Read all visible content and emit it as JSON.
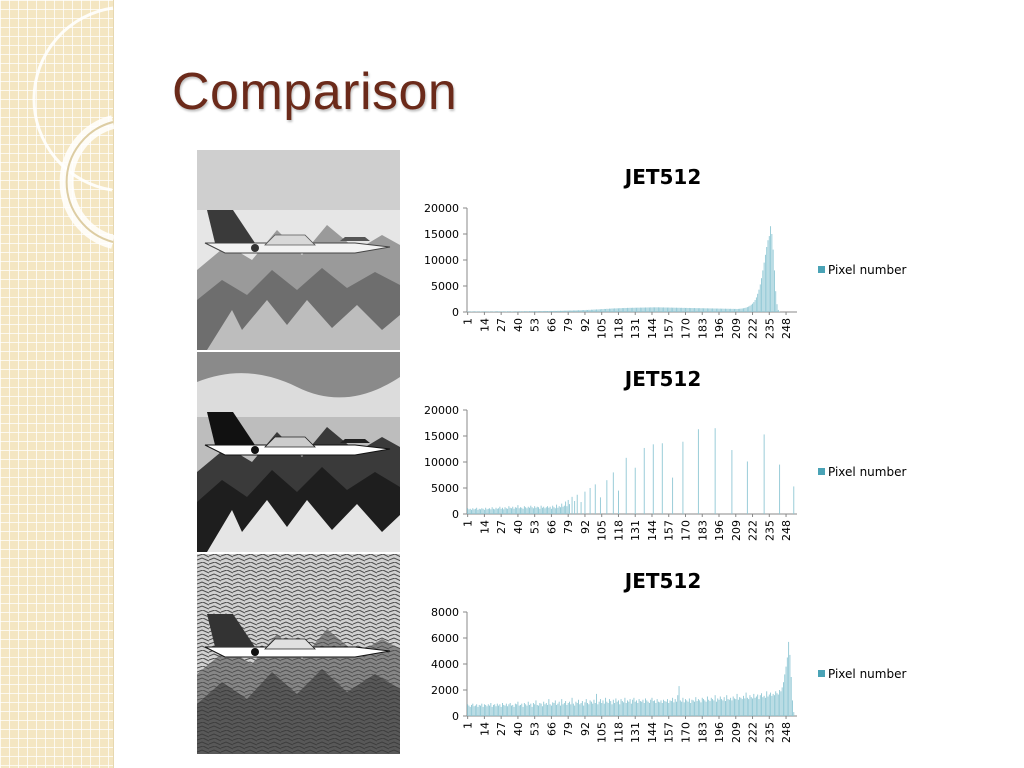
{
  "slide": {
    "title": "Comparison"
  },
  "colors": {
    "bar": "#8fc7d4",
    "legend_swatch": "#4aa3b6",
    "title": "#6b2a1a"
  },
  "photos": [
    {
      "name": "original-jet-photo",
      "tone": "bright"
    },
    {
      "name": "equalized-jet-photo",
      "tone": "contrast"
    },
    {
      "name": "noisy-jet-photo",
      "tone": "noisy"
    }
  ],
  "chart_data": [
    {
      "type": "bar",
      "title": "JET512",
      "legend": "Pixel number",
      "legend_position": "right",
      "ylim": [
        0,
        20000
      ],
      "yticks": [
        0,
        5000,
        10000,
        15000,
        20000
      ],
      "xticks": [
        1,
        14,
        27,
        40,
        53,
        66,
        79,
        92,
        105,
        118,
        131,
        144,
        157,
        170,
        183,
        196,
        209,
        222,
        235,
        248
      ],
      "x_range": [
        1,
        256
      ],
      "grid": false,
      "series": [
        {
          "values": [
            100,
            120,
            110,
            90,
            100,
            130,
            120,
            100,
            110,
            120,
            100,
            90,
            110,
            130,
            120,
            100,
            110,
            100,
            120,
            110,
            90,
            100,
            130,
            140,
            120,
            110,
            100,
            120,
            130,
            110,
            100,
            140,
            120,
            130,
            110,
            100,
            120,
            140,
            130,
            120,
            150,
            130,
            140,
            120,
            160,
            150,
            140,
            130,
            170,
            150,
            160,
            140,
            180,
            160,
            150,
            170,
            190,
            170,
            160,
            180,
            200,
            180,
            190,
            170,
            210,
            200,
            190,
            220,
            210,
            200,
            230,
            220,
            240,
            230,
            250,
            260,
            250,
            270,
            280,
            270,
            300,
            290,
            310,
            300,
            320,
            330,
            340,
            330,
            360,
            350,
            380,
            370,
            400,
            390,
            420,
            410,
            450,
            440,
            480,
            470,
            500,
            490,
            530,
            520,
            560,
            550,
            590,
            580,
            620,
            610,
            650,
            640,
            680,
            670,
            700,
            690,
            720,
            710,
            740,
            730,
            760,
            750,
            780,
            770,
            800,
            790,
            810,
            800,
            820,
            810,
            830,
            820,
            840,
            830,
            850,
            840,
            860,
            850,
            870,
            860,
            880,
            870,
            890,
            880,
            900,
            890,
            900,
            890,
            900,
            880,
            890,
            870,
            880,
            860,
            870,
            850,
            860,
            840,
            850,
            830,
            840,
            820,
            830,
            810,
            820,
            800,
            810,
            790,
            800,
            780,
            790,
            770,
            780,
            760,
            770,
            750,
            760,
            740,
            750,
            730,
            740,
            720,
            730,
            710,
            720,
            700,
            710,
            690,
            700,
            680,
            690,
            670,
            680,
            660,
            670,
            650,
            660,
            640,
            650,
            630,
            640,
            620,
            630,
            610,
            620,
            600,
            610,
            590,
            600,
            580,
            600,
            620,
            650,
            680,
            720,
            780,
            850,
            940,
            1050,
            1200,
            1400,
            1600,
            1900,
            2300,
            2800,
            3500,
            4300,
            5300,
            6500,
            8000,
            9500,
            11000,
            12500,
            13800,
            14600,
            16500,
            15000,
            12000,
            8000,
            4000,
            1500,
            400,
            100,
            0,
            0,
            0,
            0,
            0,
            0,
            0,
            0,
            0,
            0,
            0
          ]
        }
      ]
    },
    {
      "type": "bar",
      "title": "JET512",
      "legend": "Pixel number",
      "legend_position": "right",
      "ylim": [
        0,
        20000
      ],
      "yticks": [
        0,
        5000,
        10000,
        15000,
        20000
      ],
      "xticks": [
        1,
        14,
        27,
        40,
        53,
        66,
        79,
        92,
        105,
        118,
        131,
        144,
        157,
        170,
        183,
        196,
        209,
        222,
        235,
        248
      ],
      "x_range": [
        1,
        256
      ],
      "grid": false,
      "series": [
        {
          "points": [
            [
              1,
              1100
            ],
            [
              2,
              900
            ],
            [
              3,
              1000
            ],
            [
              4,
              800
            ],
            [
              5,
              1100
            ],
            [
              6,
              900
            ],
            [
              7,
              1000
            ],
            [
              8,
              1200
            ],
            [
              9,
              800
            ],
            [
              10,
              1000
            ],
            [
              11,
              900
            ],
            [
              12,
              1100
            ],
            [
              13,
              1000
            ],
            [
              14,
              800
            ],
            [
              15,
              1200
            ],
            [
              16,
              900
            ],
            [
              17,
              1000
            ],
            [
              18,
              1100
            ],
            [
              19,
              900
            ],
            [
              20,
              1300
            ],
            [
              21,
              1000
            ],
            [
              22,
              900
            ],
            [
              23,
              1200
            ],
            [
              24,
              1000
            ],
            [
              25,
              1100
            ],
            [
              26,
              1400
            ],
            [
              27,
              1000
            ],
            [
              28,
              1200
            ],
            [
              29,
              900
            ],
            [
              30,
              1300
            ],
            [
              31,
              1100
            ],
            [
              32,
              1000
            ],
            [
              33,
              1500
            ],
            [
              34,
              1200
            ],
            [
              35,
              1100
            ],
            [
              36,
              1400
            ],
            [
              37,
              1000
            ],
            [
              38,
              1300
            ],
            [
              39,
              1200
            ],
            [
              40,
              1700
            ],
            [
              41,
              1100
            ],
            [
              42,
              1300
            ],
            [
              43,
              1200
            ],
            [
              44,
              1000
            ],
            [
              45,
              1500
            ],
            [
              46,
              1300
            ],
            [
              47,
              1100
            ],
            [
              48,
              1400
            ],
            [
              49,
              1200
            ],
            [
              50,
              1600
            ],
            [
              51,
              1300
            ],
            [
              52,
              1100
            ],
            [
              53,
              1500
            ],
            [
              54,
              1200
            ],
            [
              55,
              1400
            ],
            [
              56,
              1300
            ],
            [
              57,
              1000
            ],
            [
              58,
              1600
            ],
            [
              59,
              1200
            ],
            [
              60,
              1400
            ],
            [
              61,
              1100
            ],
            [
              62,
              1300
            ],
            [
              63,
              1500
            ],
            [
              64,
              1200
            ],
            [
              65,
              1400
            ],
            [
              66,
              1000
            ],
            [
              67,
              1600
            ],
            [
              68,
              1300
            ],
            [
              69,
              1100
            ],
            [
              70,
              1800
            ],
            [
              71,
              1200
            ],
            [
              72,
              1500
            ],
            [
              73,
              1300
            ],
            [
              74,
              2000
            ],
            [
              75,
              1400
            ],
            [
              76,
              1600
            ],
            [
              77,
              2400
            ],
            [
              78,
              1500
            ],
            [
              79,
              2700
            ],
            [
              80,
              1900
            ],
            [
              82,
              3300
            ],
            [
              84,
              2500
            ],
            [
              86,
              3700
            ],
            [
              89,
              2300
            ],
            [
              92,
              4300
            ],
            [
              96,
              5000
            ],
            [
              100,
              5700
            ],
            [
              104,
              3200
            ],
            [
              109,
              6500
            ],
            [
              114,
              8000
            ],
            [
              118,
              4500
            ],
            [
              124,
              10800
            ],
            [
              131,
              8900
            ],
            [
              138,
              12700
            ],
            [
              145,
              13400
            ],
            [
              152,
              13600
            ],
            [
              160,
              7000
            ],
            [
              168,
              13900
            ],
            [
              180,
              16300
            ],
            [
              193,
              16500
            ],
            [
              206,
              12300
            ],
            [
              218,
              10100
            ],
            [
              231,
              15300
            ],
            [
              243,
              9500
            ],
            [
              254,
              5300
            ]
          ]
        }
      ]
    },
    {
      "type": "bar",
      "title": "JET512",
      "legend": "Pixel number",
      "legend_position": "right",
      "ylim": [
        0,
        8000
      ],
      "yticks": [
        0,
        2000,
        4000,
        6000,
        8000
      ],
      "xticks": [
        1,
        14,
        27,
        40,
        53,
        66,
        79,
        92,
        105,
        118,
        131,
        144,
        157,
        170,
        183,
        196,
        209,
        222,
        235,
        248
      ],
      "x_range": [
        1,
        256
      ],
      "grid": false,
      "series": [
        {
          "values": [
            900,
            800,
            700,
            850,
            950,
            750,
            800,
            900,
            700,
            850,
            800,
            950,
            700,
            900,
            850,
            750,
            900,
            800,
            1000,
            700,
            850,
            900,
            750,
            950,
            800,
            900,
            700,
            1000,
            850,
            800,
            950,
            750,
            900,
            1000,
            800,
            850,
            700,
            950,
            900,
            1100,
            800,
            850,
            950,
            700,
            1000,
            900,
            800,
            1100,
            850,
            950,
            700,
            1000,
            900,
            1200,
            850,
            800,
            1000,
            950,
            750,
            1100,
            900,
            1000,
            850,
            1300,
            900,
            800,
            1050,
            1000,
            1200,
            850,
            950,
            1100,
            800,
            1300,
            900,
            1000,
            1150,
            850,
            1000,
            1100,
            900,
            1400,
            950,
            800,
            1100,
            1000,
            1250,
            900,
            1000,
            1150,
            800,
            1050,
            1300,
            1000,
            900,
            1200,
            1100,
            950,
            1250,
            1000,
            1700,
            900,
            1100,
            1300,
            1000,
            1200,
            950,
            1400,
            1100,
            1000,
            1300,
            1150,
            900,
            1250,
            1000,
            1350,
            1100,
            1200,
            900,
            1300,
            1150,
            1050,
            1400,
            1000,
            1200,
            1100,
            1300,
            950,
            1250,
            1400,
            1100,
            1200,
            1000,
            1300,
            1150,
            1100,
            1250,
            1000,
            1350,
            1200,
            1100,
            1000,
            1250,
            1400,
            1150,
            1200,
            1000,
            1300,
            1100,
            1050,
            1200,
            1000,
            1250,
            1150,
            1100,
            1300,
            1000,
            1200,
            1150,
            1400,
            1050,
            1300,
            1100,
            1600,
            2300,
            1200,
            1100,
            1400,
            1050,
            1300,
            1200,
            1100,
            1350,
            1000,
            1250,
            1200,
            1100,
            1450,
            1150,
            1300,
            1200,
            1050,
            1400,
            1300,
            1200,
            1100,
            1500,
            1250,
            1150,
            1400,
            1300,
            1200,
            1600,
            1100,
            1350,
            1250,
            1500,
            1300,
            1200,
            1450,
            1150,
            1600,
            1300,
            1250,
            1400,
            1200,
            1500,
            1350,
            1300,
            1700,
            1250,
            1450,
            1400,
            1300,
            1550,
            1350,
            1800,
            1400,
            1300,
            1600,
            1450,
            1350,
            1700,
            1400,
            1500,
            1650,
            1300,
            1600,
            1750,
            1450,
            1550,
            1400,
            1900,
            1500,
            1650,
            1800,
            1550,
            1700,
            1600,
            1900,
            1750,
            1650,
            2000,
            1900,
            2200,
            2600,
            3200,
            3800,
            4500,
            5700,
            4700,
            3000,
            1200,
            300
          ]
        }
      ]
    }
  ]
}
